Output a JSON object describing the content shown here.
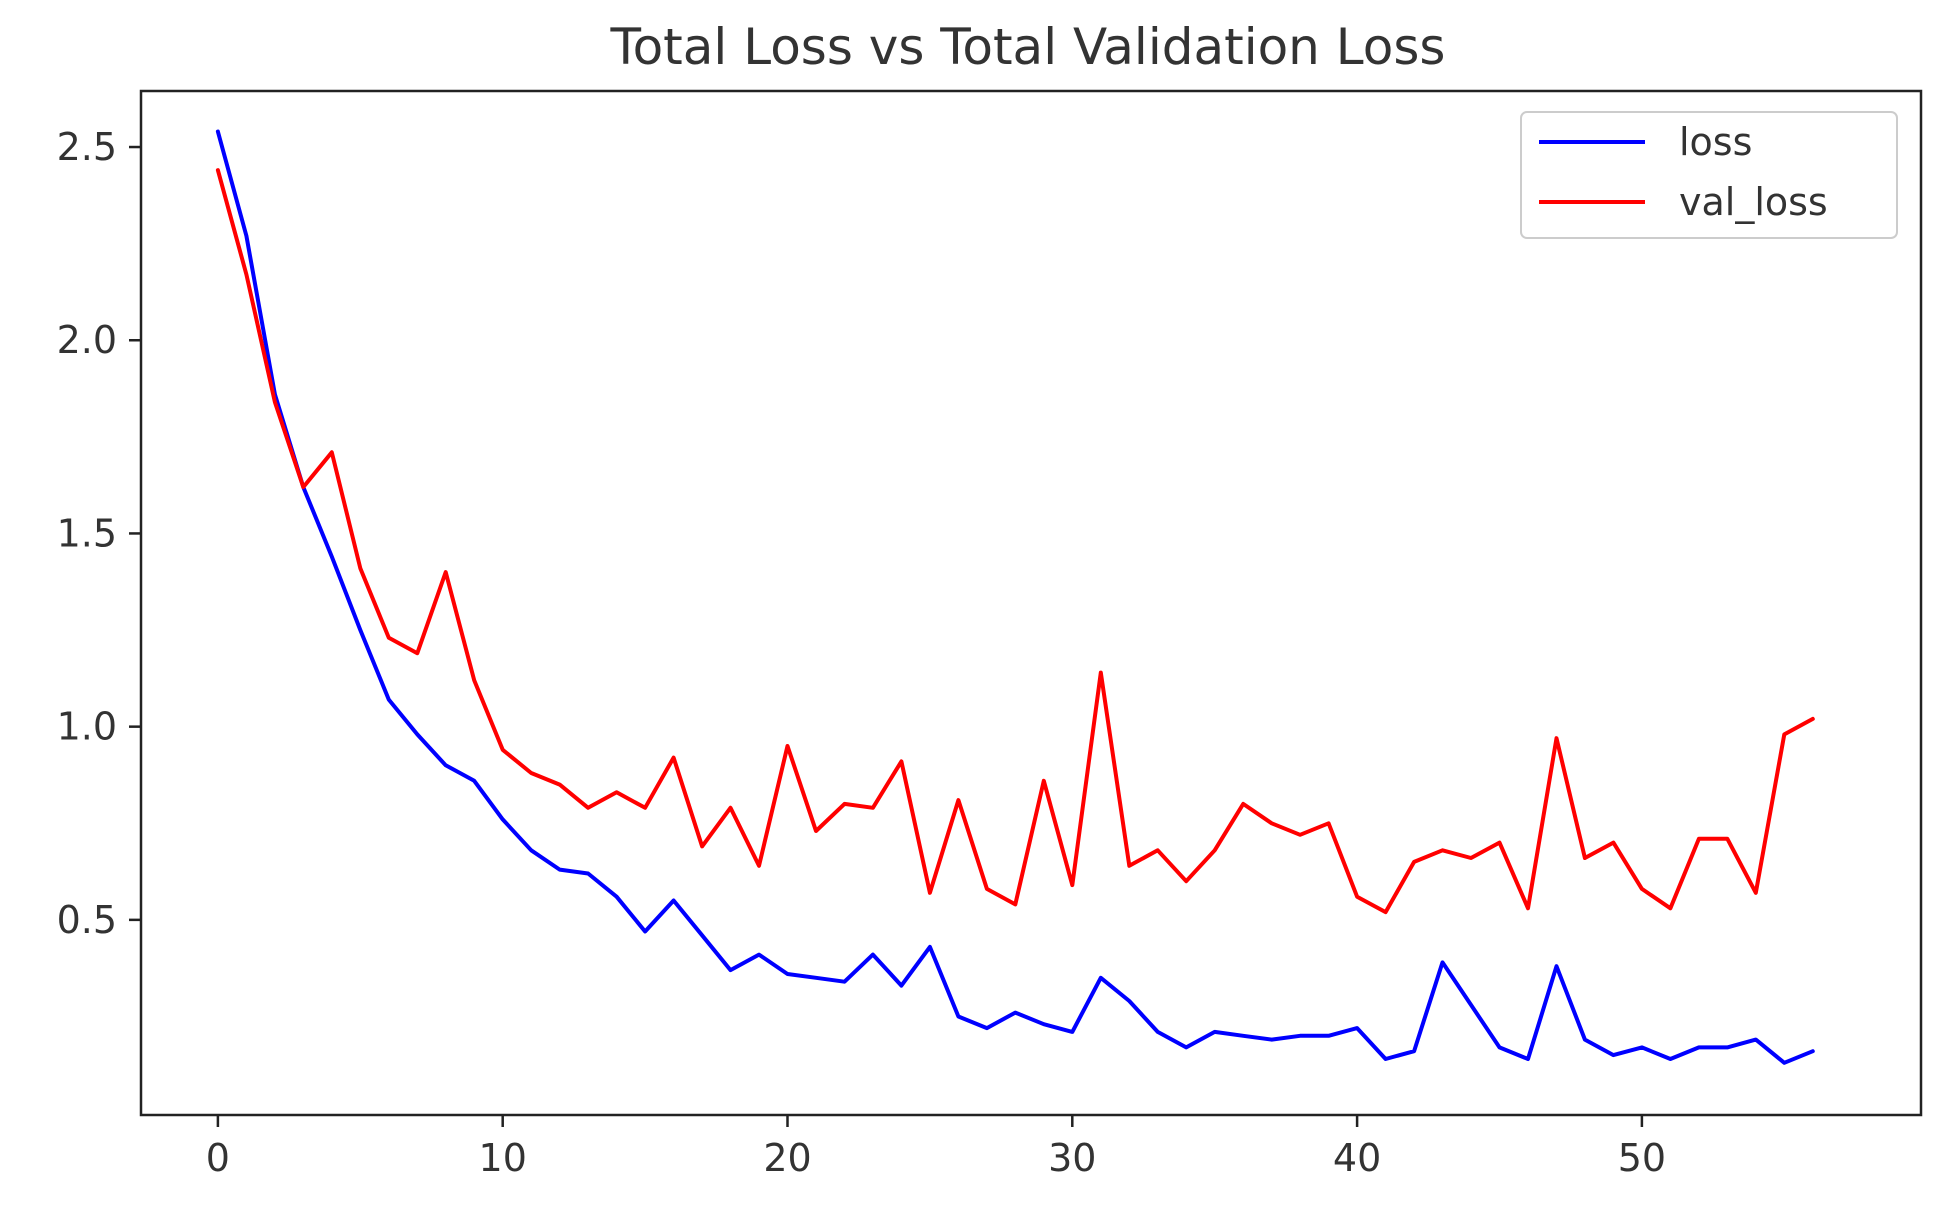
{
  "chart_data": {
    "type": "line",
    "title": "Total Loss vs Total Validation Loss",
    "xlabel": "",
    "ylabel": "",
    "xlim": [
      -2.7,
      59.8
    ],
    "ylim": [
      -0.005,
      2.645
    ],
    "x_ticks": [
      0,
      10,
      20,
      30,
      40,
      50
    ],
    "x_tick_labels": [
      "0",
      "10",
      "20",
      "30",
      "40",
      "50"
    ],
    "y_ticks": [
      0.5,
      1.0,
      1.5,
      2.0,
      2.5
    ],
    "y_tick_labels": [
      "0.5",
      "1.0",
      "1.5",
      "2.0",
      "2.5"
    ],
    "grid": false,
    "legend_position": "top-right",
    "x": [
      0,
      1,
      2,
      3,
      4,
      5,
      6,
      7,
      8,
      9,
      10,
      11,
      12,
      13,
      14,
      15,
      16,
      17,
      18,
      19,
      20,
      21,
      22,
      23,
      24,
      25,
      26,
      27,
      28,
      29,
      30,
      31,
      32,
      33,
      34,
      35,
      36,
      37,
      38,
      39,
      40,
      41,
      42,
      43,
      44,
      45,
      46,
      47,
      48,
      49,
      50,
      51,
      52,
      53,
      54,
      55,
      56
    ],
    "series": [
      {
        "name": "loss",
        "color": "#0000ff",
        "values": [
          2.54,
          2.27,
          1.86,
          1.62,
          1.44,
          1.25,
          1.07,
          0.98,
          0.9,
          0.86,
          0.76,
          0.68,
          0.63,
          0.62,
          0.56,
          0.47,
          0.55,
          0.46,
          0.37,
          0.41,
          0.36,
          0.35,
          0.34,
          0.41,
          0.33,
          0.43,
          0.25,
          0.22,
          0.26,
          0.23,
          0.21,
          0.35,
          0.29,
          0.21,
          0.17,
          0.21,
          0.2,
          0.19,
          0.2,
          0.2,
          0.22,
          0.14,
          0.16,
          0.39,
          0.28,
          0.17,
          0.14,
          0.38,
          0.19,
          0.15,
          0.17,
          0.14,
          0.17,
          0.17,
          0.19,
          0.13,
          0.16
        ]
      },
      {
        "name": "val_loss",
        "color": "#ff0000",
        "values": [
          2.44,
          2.17,
          1.84,
          1.62,
          1.71,
          1.41,
          1.23,
          1.19,
          1.4,
          1.12,
          0.94,
          0.88,
          0.85,
          0.79,
          0.83,
          0.79,
          0.92,
          0.69,
          0.79,
          0.64,
          0.95,
          0.73,
          0.8,
          0.79,
          0.91,
          0.57,
          0.81,
          0.58,
          0.54,
          0.86,
          0.59,
          1.14,
          0.64,
          0.68,
          0.6,
          0.68,
          0.8,
          0.75,
          0.72,
          0.75,
          0.56,
          0.52,
          0.65,
          0.68,
          0.66,
          0.7,
          0.53,
          0.97,
          0.66,
          0.7,
          0.58,
          0.53,
          0.71,
          0.71,
          0.57,
          0.98,
          1.02
        ]
      }
    ]
  }
}
